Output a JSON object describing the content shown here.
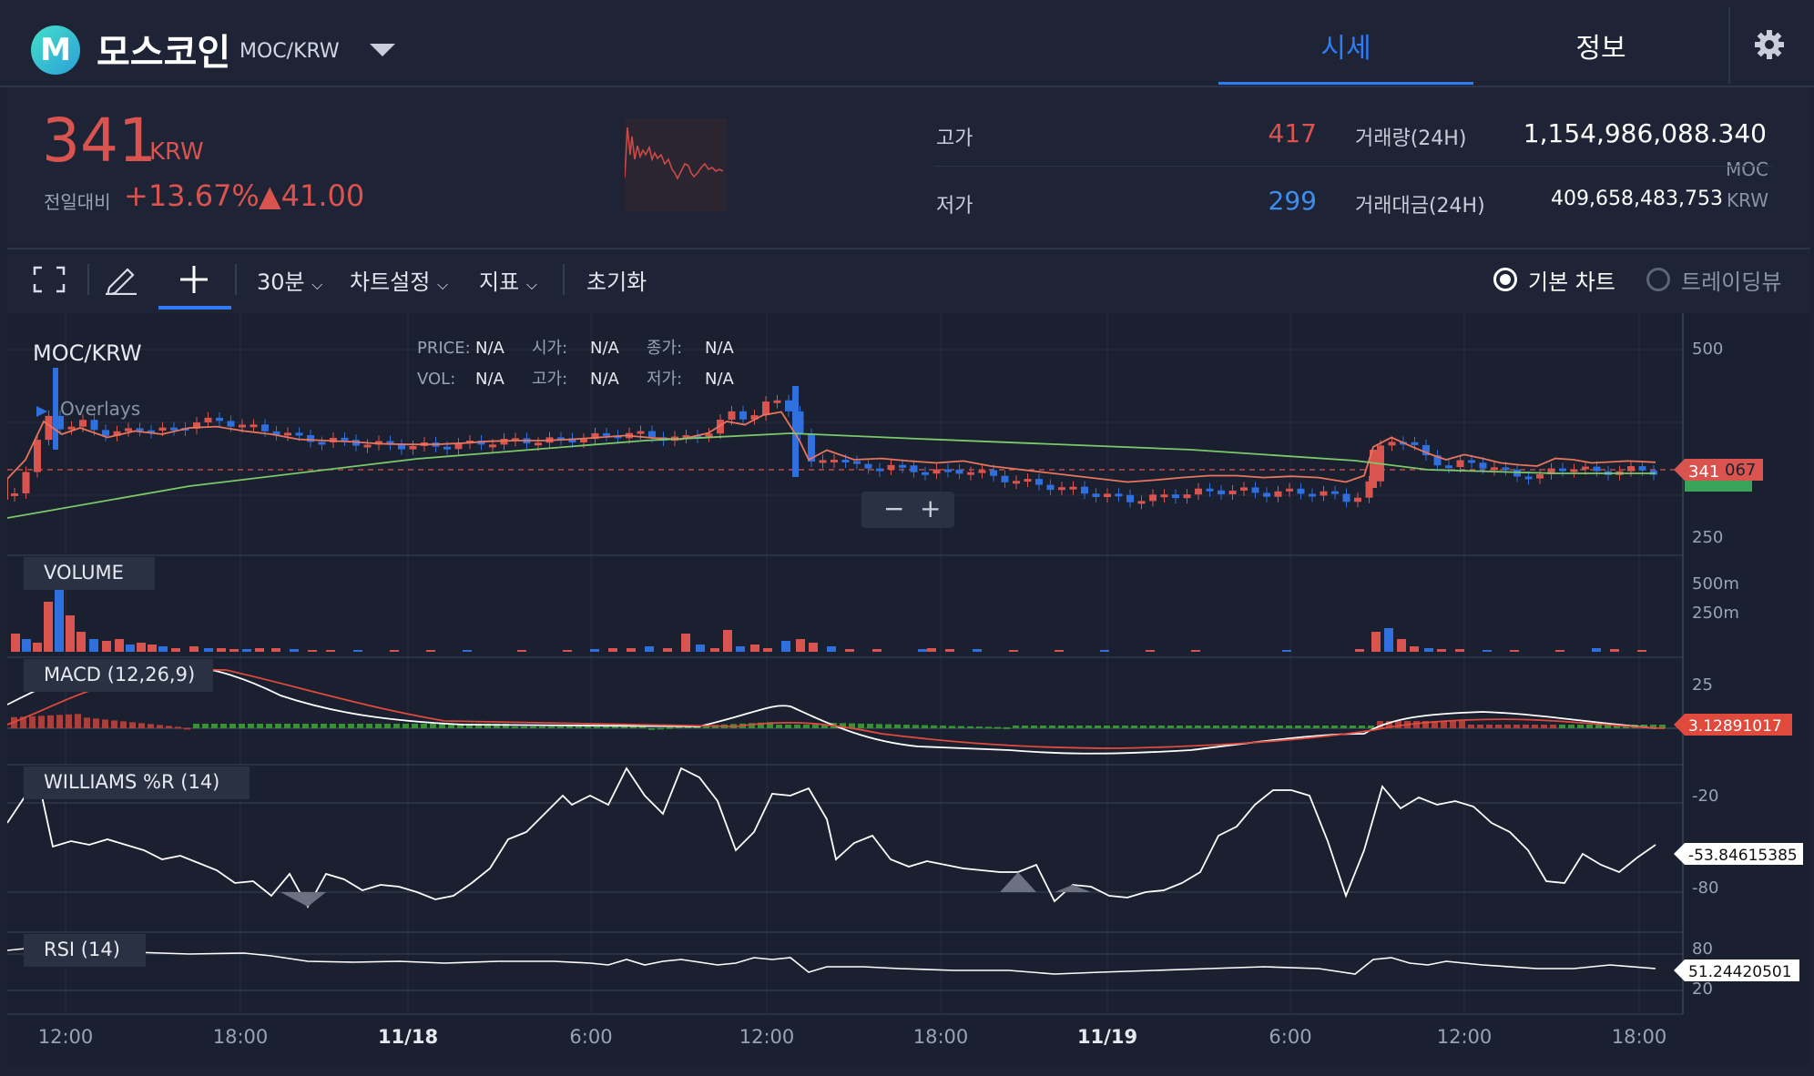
{
  "header": {
    "logo_letter": "M",
    "coin_name": "모스코인",
    "pair": "MOC/KRW",
    "tabs": [
      {
        "label": "시세",
        "active": true
      },
      {
        "label": "정보",
        "active": false
      }
    ],
    "settings_icon": "gear-icon"
  },
  "ticker": {
    "price": "341",
    "unit": "KRW",
    "change_label": "전일대비",
    "change_pct": "+13.67%",
    "change_amt": "▲41.00",
    "high_label": "고가",
    "high": "417",
    "low_label": "저가",
    "low": "299",
    "volume_label": "거래량(24H)",
    "volume": "1,154,986,088.340",
    "volume_unit": "MOC",
    "amount_label": "거래대금(24H)",
    "amount": "409,658,483,753",
    "amount_unit": "KRW"
  },
  "toolbar": {
    "interval": "30분",
    "chart_settings": "차트설정",
    "indicators": "지표",
    "reset": "초기화",
    "basic_chart": "기본 차트",
    "trading_view": "트레이딩뷰"
  },
  "chart": {
    "symbol": "MOC/KRW",
    "overlays": "Overlays",
    "ohlc": [
      {
        "k": "PRICE:",
        "v": "N/A"
      },
      {
        "k": "시가:",
        "v": "N/A"
      },
      {
        "k": "종가:",
        "v": "N/A"
      },
      {
        "k": "VOL:",
        "v": "N/A"
      },
      {
        "k": "고가:",
        "v": "N/A"
      },
      {
        "k": "저가:",
        "v": "N/A"
      }
    ],
    "zoom_out": "−",
    "zoom_in": "+",
    "price_axis": [
      "500",
      "250"
    ],
    "volume_axis": [
      "500m",
      "250m"
    ],
    "macd_axis": [
      "25"
    ],
    "williams_axis": [
      "-20",
      "-80"
    ],
    "rsi_axis": [
      "80",
      "20"
    ],
    "last_price_tag": "341",
    "last_price_tag_extra": "067",
    "panes": {
      "volume": "VOLUME",
      "macd": "MACD (12,26,9)",
      "williams": "WILLIAMS %R (14)",
      "rsi": "RSI (14)"
    },
    "macd_value": "3.12891017",
    "williams_value": "-53.84615385",
    "rsi_value": "51.24420501",
    "time_axis": [
      "12:00",
      "18:00",
      "11/18",
      "6:00",
      "12:00",
      "18:00",
      "11/19",
      "6:00",
      "12:00",
      "18:00"
    ],
    "colors": {
      "up": "#d9534f",
      "down": "#2f6fde",
      "ma_short": "#e8745c",
      "ma_long": "#7cc96a"
    }
  }
}
